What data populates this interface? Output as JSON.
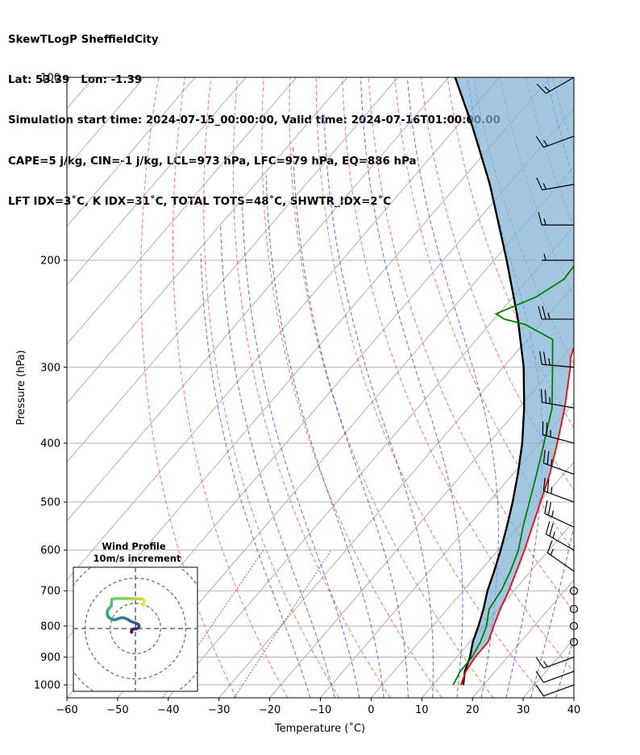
{
  "header": {
    "line1": "SkewTLogP SheffieldCity",
    "line2": "Lat: 53.39   Lon: -1.39",
    "line3": "Simulation start time: 2024-07-15_00:00:00, Valid time: 2024-07-16T01:00:00.00",
    "line4": "CAPE=5 j/kg, CIN=-1 j/kg, LCL=973 hPa, LFC=979 hPa, EQ=886 hPa",
    "line5": "LFT IDX=3˚C, K IDX=31˚C, TOTAL TOTS=48˚C, SHWTR_IDX=2˚C"
  },
  "chart_data": {
    "type": "line",
    "subtype": "skew-t log-p",
    "xlabel": "Temperature (˚C)",
    "ylabel": "Pressure (hPa)",
    "xlim": [
      -60,
      40
    ],
    "ylim": [
      1050,
      100
    ],
    "y_scale": "log",
    "grid": true,
    "x_ticks": [
      "−60",
      "−50",
      "−40",
      "−30",
      "−20",
      "−10",
      "0",
      "10",
      "20",
      "30",
      "40"
    ],
    "y_ticks": [
      "100",
      "200",
      "300",
      "400",
      "500",
      "600",
      "700",
      "800",
      "900",
      "1000"
    ],
    "temperature": {
      "color": "#ff0000",
      "p": [
        1000,
        950,
        900,
        850,
        800,
        750,
        700,
        650,
        600,
        550,
        500,
        450,
        400,
        350,
        300,
        290,
        280,
        260,
        250,
        240,
        230,
        220,
        200,
        180,
        170,
        160,
        140,
        130,
        120,
        110,
        100
      ],
      "t": [
        15.5,
        14.2,
        13.6,
        13.6,
        12.0,
        10.4,
        9.0,
        7.2,
        5.2,
        2.8,
        0.2,
        -2.7,
        -6.5,
        -11.0,
        -16.8,
        -18.3,
        -19.3,
        -19.5,
        -18.8,
        -18.6,
        -18.6,
        -18.8,
        -20.2,
        -23.0,
        -25.0,
        -27.6,
        -33.6,
        -36.8,
        -40.1,
        -44.6,
        -49.4
      ]
    },
    "dewpoint": {
      "color": "#008000",
      "p": [
        1000,
        950,
        900,
        850,
        800,
        750,
        700,
        650,
        600,
        550,
        500,
        450,
        400,
        350,
        300,
        270,
        255,
        250,
        245,
        230,
        215,
        200,
        190,
        180,
        165,
        150,
        130,
        115,
        100
      ],
      "t": [
        14.0,
        13.1,
        13.0,
        12.1,
        10.6,
        8.2,
        7.5,
        6.0,
        4.0,
        1.0,
        -2.0,
        -5.3,
        -9.1,
        -13.5,
        -20.3,
        -25.0,
        -33.0,
        -38.0,
        -40.5,
        -35.5,
        -33.0,
        -33.4,
        -33.2,
        -35.0,
        -37.7,
        -42.4,
        -50.4,
        -56.8,
        -63.3
      ]
    },
    "parcel": {
      "color": "#000000",
      "p": [
        1000,
        950,
        900,
        850,
        800,
        750,
        700,
        650,
        600,
        550,
        500,
        450,
        400,
        350,
        300,
        250,
        200,
        150,
        120,
        100
      ],
      "t": [
        16.0,
        14.0,
        12.6,
        10.6,
        9.0,
        7.1,
        4.8,
        2.8,
        0.5,
        -2.2,
        -5.3,
        -9.0,
        -13.4,
        -19.0,
        -26.0,
        -35.3,
        -47.5,
        -63.7,
        -77.2,
        -88.7
      ]
    },
    "dry_adiabats": {
      "color": "#ff0000",
      "theta_C": [
        -30,
        -20,
        -10,
        0,
        10,
        20,
        30,
        40,
        50,
        60,
        70,
        80,
        90,
        100,
        110,
        120,
        130,
        140,
        150,
        160,
        170
      ]
    },
    "moist_adiabats": {
      "color": "#0000ff",
      "start_T_C_at_1000": [
        -15,
        -10,
        -5,
        0,
        5,
        10,
        15,
        20,
        25,
        30,
        35
      ]
    },
    "mixing_ratio": {
      "color": "#800080",
      "w_gkg": [
        0.1,
        0.4
      ]
    },
    "wind_barbs": {
      "p": [
        1000,
        950,
        900,
        850,
        800,
        750,
        700,
        650,
        600,
        550,
        500,
        450,
        400,
        350,
        300,
        250,
        200,
        175,
        150,
        125,
        100
      ],
      "speed_kt": [
        10,
        10,
        15,
        0,
        0,
        0,
        0,
        15,
        25,
        25,
        25,
        25,
        25,
        25,
        25,
        25,
        5,
        15,
        15,
        15,
        15
      ],
      "direction_deg": [
        250,
        250,
        250,
        0,
        0,
        0,
        0,
        305,
        300,
        295,
        290,
        290,
        285,
        280,
        275,
        270,
        270,
        270,
        260,
        250,
        240
      ]
    },
    "inset": {
      "title_line1": "Wind Profile",
      "title_line2": "10m/s increment",
      "type": "hodograph",
      "rings_ms": [
        10,
        20,
        30
      ],
      "points_uv": [
        [
          -1.5,
          -1.5
        ],
        [
          -1.6,
          -1.0
        ],
        [
          -1.2,
          -0.5
        ],
        [
          -0.7,
          -0.2
        ],
        [
          0.5,
          -0.1
        ],
        [
          1.2,
          0.2
        ],
        [
          1.5,
          0.9
        ],
        [
          1.2,
          1.6
        ],
        [
          0.4,
          2.0
        ],
        [
          -0.3,
          2.3
        ],
        [
          -1.2,
          2.6
        ],
        [
          -2.0,
          2.9
        ],
        [
          -3.0,
          3.6
        ],
        [
          -4.2,
          4.1
        ],
        [
          -5.4,
          4.3
        ],
        [
          -6.6,
          4.0
        ],
        [
          -7.6,
          3.6
        ],
        [
          -8.6,
          3.4
        ],
        [
          -10.0,
          4.0
        ],
        [
          -10.8,
          4.6
        ],
        [
          -11.2,
          6.0
        ],
        [
          -11.1,
          7.0
        ],
        [
          -10.5,
          8.0
        ],
        [
          -9.6,
          8.9
        ],
        [
          -9.5,
          10.2
        ],
        [
          -9.3,
          11.7
        ],
        [
          -7.5,
          11.9
        ],
        [
          -5.0,
          11.9
        ],
        [
          -2.5,
          11.9
        ],
        [
          0.0,
          11.8
        ],
        [
          1.5,
          11.8
        ],
        [
          2.8,
          11.7
        ],
        [
          3.5,
          11.2
        ],
        [
          3.4,
          10.0
        ],
        [
          3.1,
          9.2
        ]
      ]
    }
  }
}
